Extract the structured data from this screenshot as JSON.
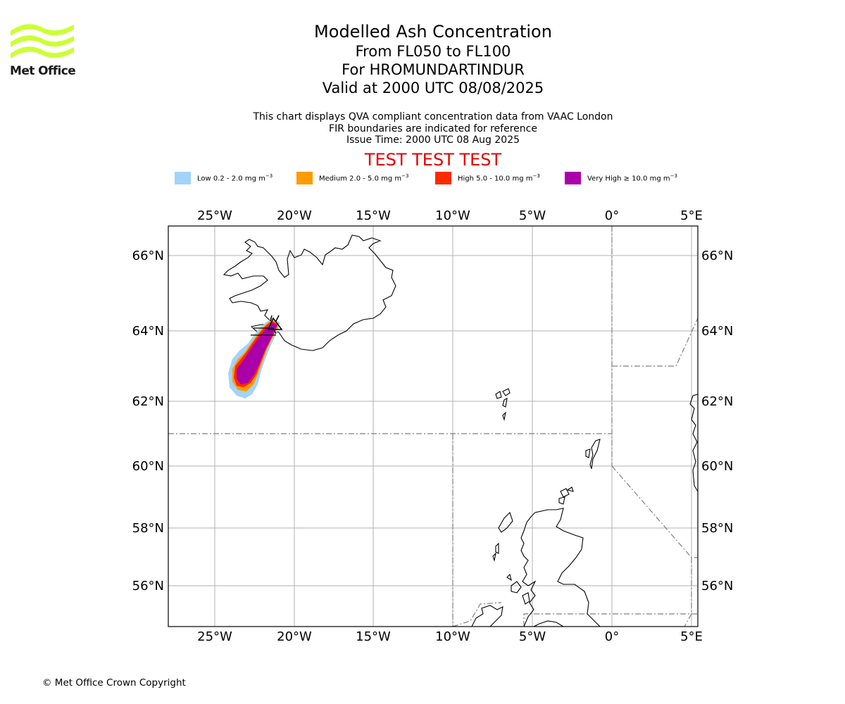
{
  "header": {
    "logo_text": "Met Office",
    "title": "Modelled Ash Concentration",
    "levels": "From FL050 to FL100",
    "volcano": "For HROMUNDARTINDUR",
    "valid": "Valid at 2000 UTC 08/08/2025"
  },
  "notes": {
    "line1": "This chart displays QVA compliant concentration data from VAAC London",
    "line2": "FIR boundaries are indicated for reference",
    "line3": "Issue Time: 2000 UTC 08 Aug 2025"
  },
  "test_banner": "TEST TEST TEST",
  "legend": [
    {
      "label": "Low 0.2 - 2.0 mg m",
      "sup": "−3",
      "color": "#a3d3fa"
    },
    {
      "label": "Medium 2.0 - 5.0 mg m",
      "sup": "−3",
      "color": "#ff9a00"
    },
    {
      "label": "High 5.0 - 10.0 mg m",
      "sup": "−3",
      "color": "#ff2a00"
    },
    {
      "label": "Very High  ≥  10.0 mg m",
      "sup": "−3",
      "color": "#aa00aa"
    }
  ],
  "map": {
    "lon_labels": [
      "25°W",
      "20°W",
      "15°W",
      "10°W",
      "5°W",
      "0°",
      "5°E"
    ],
    "lat_labels": [
      "66°N",
      "64°N",
      "62°N",
      "60°N",
      "58°N",
      "56°N"
    ],
    "volcano_marker": "triangle-icon"
  },
  "footer": {
    "copyright": "© Met Office Crown Copyright"
  }
}
